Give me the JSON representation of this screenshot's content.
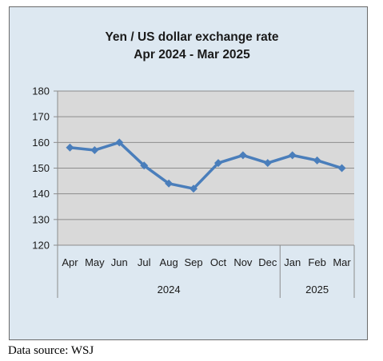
{
  "chart_data": {
    "type": "line",
    "title": "Yen / US dollar exchange rate",
    "subtitle": "Apr 2024  - Mar 2025",
    "categories": [
      "Apr",
      "May",
      "Jun",
      "Jul",
      "Aug",
      "Sep",
      "Oct",
      "Nov",
      "Dec",
      "Jan",
      "Feb",
      "Mar"
    ],
    "year_groups": [
      {
        "label": "2024",
        "count": 9
      },
      {
        "label": "2025",
        "count": 3
      }
    ],
    "series": [
      {
        "values": [
          158,
          157,
          160,
          151,
          144,
          142,
          152,
          155,
          152,
          155,
          153,
          150
        ],
        "color": "#4a7ebb"
      }
    ],
    "ylim": [
      120,
      180
    ],
    "yticks": [
      120,
      130,
      140,
      150,
      160,
      170,
      180
    ],
    "grid": true,
    "legend": "none",
    "plot_bg": "#d9d9d9",
    "panel_bg": "#dde8f1"
  },
  "footer": {
    "source": "Data source: WSJ"
  }
}
